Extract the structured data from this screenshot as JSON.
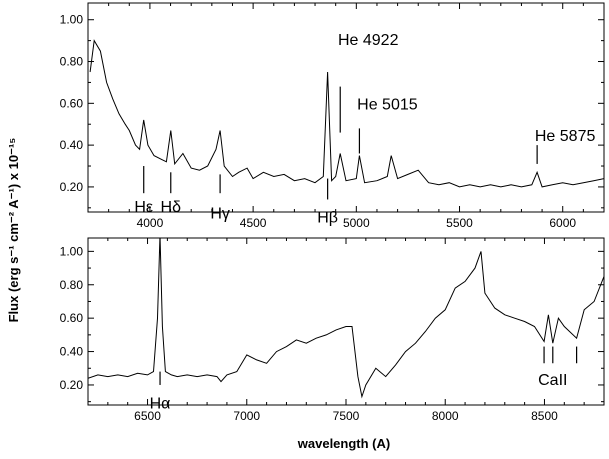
{
  "chart_data": [
    {
      "type": "line",
      "panel": "top",
      "xlabel": "",
      "ylabel": "Flux (erg s⁻¹ cm⁻² A⁻¹) x 10⁻¹⁵",
      "xlim": [
        3700,
        6200
      ],
      "ylim": [
        0.08,
        1.08
      ],
      "x_ticks": [
        4000,
        4500,
        5000,
        5500,
        6000
      ],
      "x_tick_labels": [
        "4000",
        "4500",
        "5000",
        "5500",
        "6000"
      ],
      "x_tick_labels_position": "bottom",
      "y_ticks": [
        0.2,
        0.4,
        0.6,
        0.8,
        1.0
      ],
      "y_tick_labels": [
        "0.20",
        "0.40",
        "0.60",
        "0.80",
        "1.00"
      ],
      "grid": false,
      "legend": "none",
      "series": [
        {
          "x": [
            3710,
            3730,
            3760,
            3790,
            3820,
            3850,
            3880,
            3900,
            3930,
            3950,
            3970,
            3990,
            4020,
            4060,
            4080,
            4101,
            4120,
            4160,
            4200,
            4240,
            4280,
            4320,
            4340,
            4360,
            4400,
            4430,
            4471,
            4500,
            4550,
            4600,
            4650,
            4700,
            4750,
            4800,
            4840,
            4861,
            4880,
            4900,
            4922,
            4950,
            5000,
            5015,
            5040,
            5100,
            5150,
            5169,
            5200,
            5250,
            5300,
            5350,
            5400,
            5450,
            5500,
            5550,
            5600,
            5650,
            5700,
            5750,
            5800,
            5850,
            5876,
            5900,
            5950,
            6000,
            6050,
            6100,
            6150,
            6200
          ],
          "y": [
            0.75,
            0.9,
            0.85,
            0.7,
            0.62,
            0.55,
            0.5,
            0.47,
            0.4,
            0.38,
            0.52,
            0.4,
            0.35,
            0.33,
            0.32,
            0.47,
            0.31,
            0.36,
            0.29,
            0.28,
            0.3,
            0.38,
            0.47,
            0.3,
            0.25,
            0.27,
            0.29,
            0.24,
            0.27,
            0.25,
            0.26,
            0.23,
            0.24,
            0.22,
            0.25,
            0.75,
            0.23,
            0.25,
            0.36,
            0.23,
            0.24,
            0.35,
            0.22,
            0.23,
            0.25,
            0.35,
            0.24,
            0.26,
            0.28,
            0.22,
            0.21,
            0.22,
            0.2,
            0.21,
            0.2,
            0.21,
            0.2,
            0.21,
            0.2,
            0.21,
            0.27,
            0.2,
            0.21,
            0.22,
            0.21,
            0.22,
            0.23,
            0.24
          ]
        }
      ],
      "annotations": [
        {
          "text": "Hε",
          "x": 3970,
          "y_tick": [
            0.17,
            0.3
          ],
          "y_text": 0.08
        },
        {
          "text": "Hδ",
          "x": 4101,
          "y_tick": [
            0.17,
            0.27
          ],
          "y_text": 0.08
        },
        {
          "text": "Hγ",
          "x": 4340,
          "y_tick": [
            0.17,
            0.26
          ],
          "y_text": 0.05
        },
        {
          "text": "Hβ",
          "x": 4861,
          "y_tick": [
            0.14,
            0.24
          ],
          "y_text": 0.03
        },
        {
          "text": "He 4922",
          "x": 4922,
          "y_tick": [
            0.46,
            0.68
          ],
          "y_text": 0.88
        },
        {
          "text": "He 5015",
          "x": 5015,
          "y_tick": [
            0.36,
            0.48
          ],
          "y_text": 0.57
        },
        {
          "text": "He 5875",
          "x": 5876,
          "y_tick": [
            0.31,
            0.4
          ],
          "y_text": 0.42
        }
      ]
    },
    {
      "type": "line",
      "panel": "bottom",
      "xlabel": "wavelength (A)",
      "ylabel": "",
      "xlim": [
        6200,
        8800
      ],
      "ylim": [
        0.08,
        1.08
      ],
      "x_ticks": [
        6500,
        7000,
        7500,
        8000,
        8500
      ],
      "x_tick_labels": [
        "6500",
        "7000",
        "7500",
        "8000",
        "8500"
      ],
      "y_ticks": [
        0.2,
        0.4,
        0.6,
        0.8,
        1.0
      ],
      "y_tick_labels": [
        "0.20",
        "0.40",
        "0.60",
        "0.80",
        "1.00"
      ],
      "grid": false,
      "legend": "none",
      "series": [
        {
          "x": [
            6200,
            6250,
            6300,
            6350,
            6400,
            6450,
            6500,
            6530,
            6550,
            6563,
            6575,
            6590,
            6620,
            6650,
            6700,
            6750,
            6800,
            6850,
            6870,
            6900,
            6950,
            7000,
            7050,
            7100,
            7150,
            7200,
            7250,
            7300,
            7350,
            7400,
            7450,
            7500,
            7530,
            7560,
            7580,
            7600,
            7650,
            7700,
            7750,
            7800,
            7850,
            7900,
            7950,
            8000,
            8050,
            8100,
            8150,
            8180,
            8200,
            8250,
            8300,
            8350,
            8400,
            8450,
            8498,
            8520,
            8542,
            8570,
            8600,
            8662,
            8700,
            8750,
            8800
          ],
          "y": [
            0.24,
            0.26,
            0.25,
            0.26,
            0.25,
            0.27,
            0.26,
            0.28,
            0.6,
            1.1,
            0.55,
            0.28,
            0.26,
            0.25,
            0.26,
            0.25,
            0.26,
            0.25,
            0.22,
            0.26,
            0.28,
            0.38,
            0.35,
            0.33,
            0.4,
            0.43,
            0.47,
            0.45,
            0.48,
            0.5,
            0.53,
            0.55,
            0.55,
            0.25,
            0.13,
            0.2,
            0.3,
            0.25,
            0.32,
            0.4,
            0.45,
            0.52,
            0.6,
            0.65,
            0.78,
            0.82,
            0.9,
            1.0,
            0.75,
            0.66,
            0.62,
            0.6,
            0.58,
            0.55,
            0.46,
            0.62,
            0.45,
            0.6,
            0.55,
            0.48,
            0.65,
            0.7,
            0.85
          ]
        }
      ],
      "annotations": [
        {
          "text": "Hα",
          "x": 6563,
          "y_tick": [
            0.2,
            0.28
          ],
          "y_text": 0.06
        },
        {
          "text": "CaII",
          "x": 8542,
          "y_tick": [
            0.33,
            0.43
          ],
          "y_text": 0.2,
          "extra_ticks_x": [
            8498,
            8662
          ]
        }
      ]
    }
  ]
}
